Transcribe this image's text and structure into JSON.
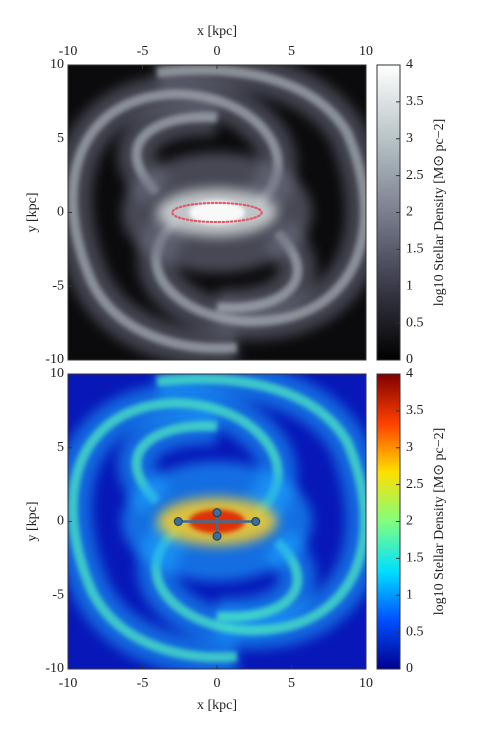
{
  "chart_data": [
    {
      "type": "heatmap",
      "x_label": "x [kpc]",
      "y_label": "y [kpc]",
      "xaxis_position": "top",
      "xlim": [
        -10,
        10
      ],
      "ylim": [
        -10,
        10
      ],
      "xticks": [
        -10,
        -5,
        0,
        5,
        10
      ],
      "yticks": [
        -10,
        -5,
        0,
        5,
        10
      ],
      "colorbar": {
        "label": "log10 Stellar Density [M⊙ pc−2]",
        "colormap": "gray",
        "lim": [
          0,
          4
        ],
        "ticks": [
          0,
          0.5,
          1,
          1.5,
          2,
          2.5,
          3,
          3.5,
          4
        ]
      },
      "ellipse": {
        "center_x": 0,
        "center_y": 0,
        "semi_major": 3,
        "semi_minor": 0.65,
        "color": "#e05a6a"
      }
    },
    {
      "type": "heatmap",
      "x_label": "x [kpc]",
      "y_label": "y [kpc]",
      "xaxis_position": "bottom",
      "xlim": [
        -10,
        10
      ],
      "ylim": [
        -10,
        10
      ],
      "xticks": [
        -10,
        -5,
        0,
        5,
        10
      ],
      "yticks": [
        -10,
        -5,
        0,
        5,
        10
      ],
      "colorbar": {
        "label": "log10 Stellar Density [M⊙ pc−2]",
        "colormap": "jet",
        "lim": [
          0,
          4
        ],
        "ticks": [
          0,
          0.5,
          1,
          1.5,
          2,
          2.5,
          3,
          3.5,
          4
        ]
      },
      "markers": {
        "x": [
          -2.6,
          2.6,
          0,
          0
        ],
        "y": [
          0,
          0,
          0.6,
          -1.0
        ],
        "color": "#3a6f9a"
      }
    }
  ]
}
